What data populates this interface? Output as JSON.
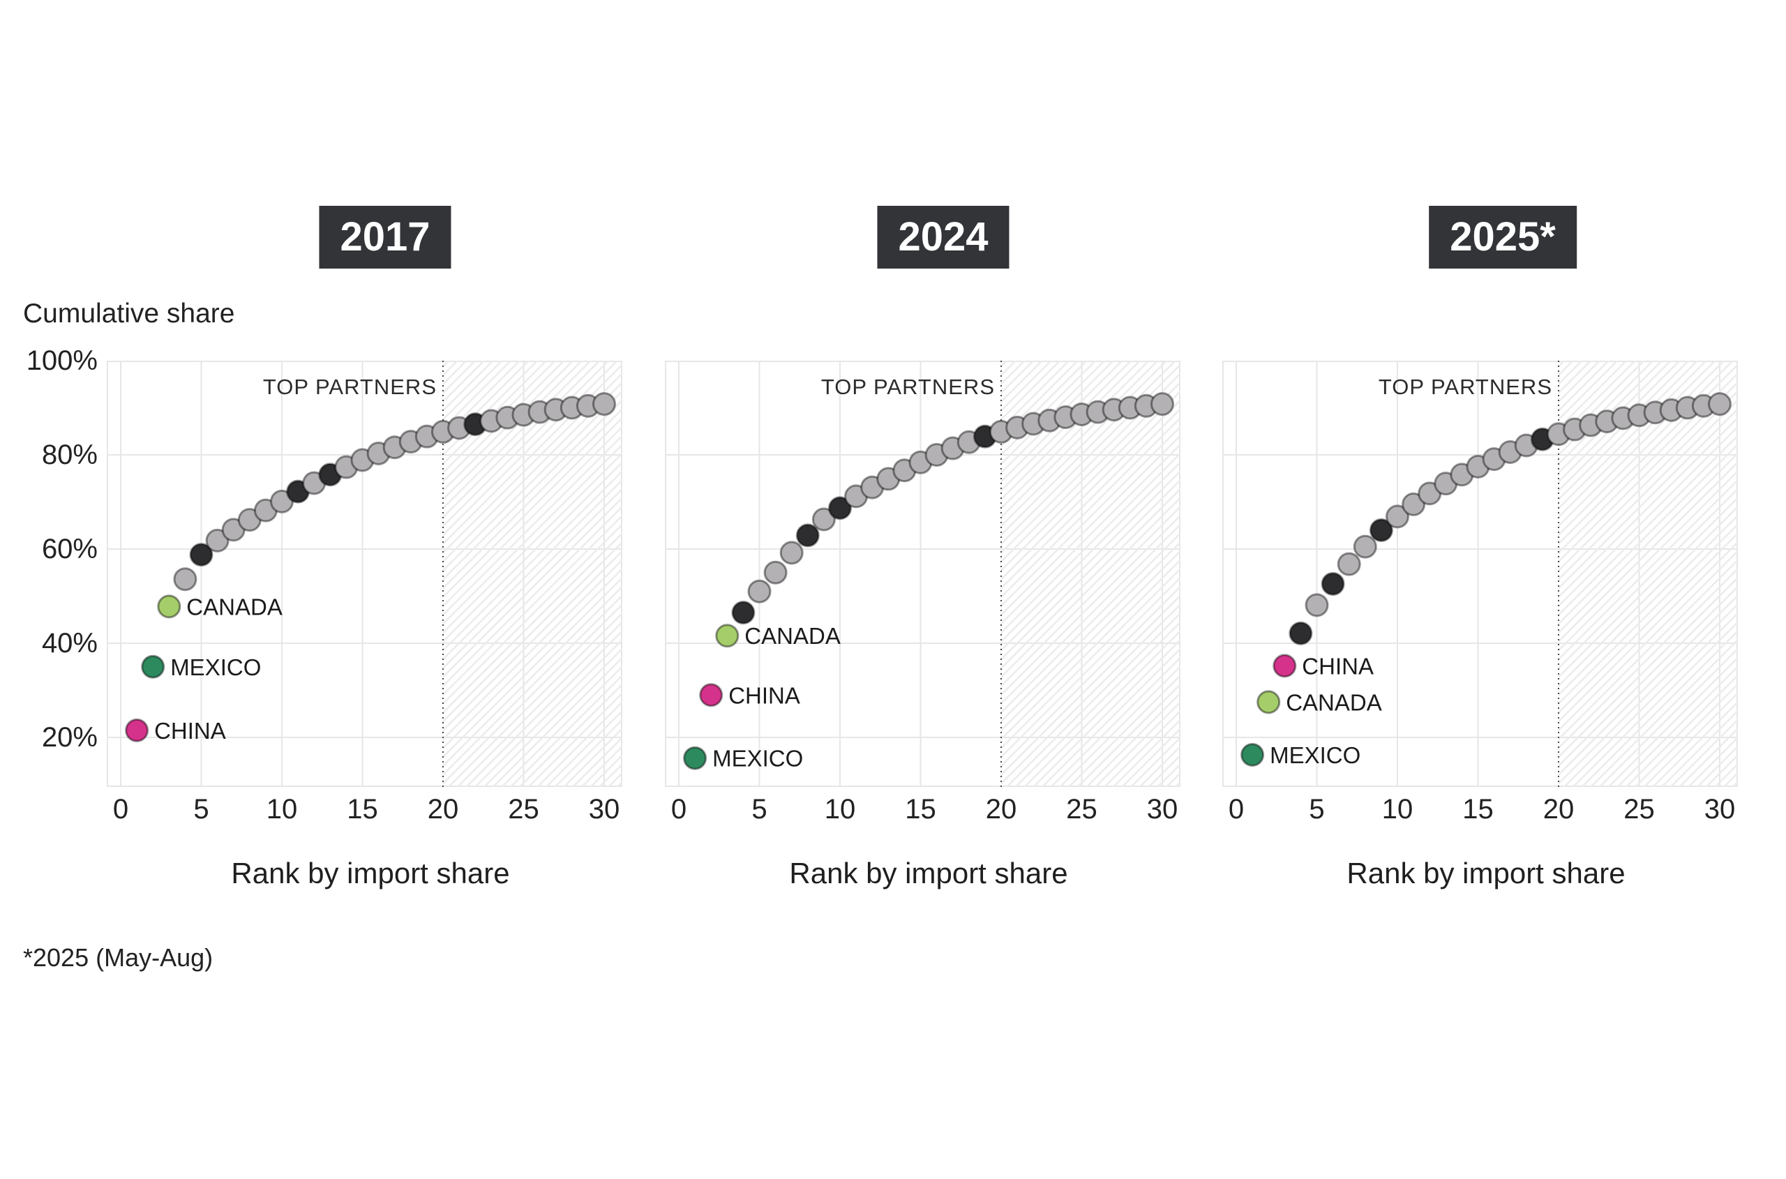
{
  "page": {
    "y_axis_title": "Cumulative share",
    "footnote": "*2025 (May-Aug)"
  },
  "style": {
    "gray_dot": "#b3b1b3",
    "black_dot": "#2d2d2f",
    "dot_stroke": "#000000",
    "grid": "#e6e6e6",
    "hatch": "#ebebeb",
    "cutoff_line": "#454545",
    "title_bg": "#323438",
    "title_text": "#ffffff",
    "china": "#d4328b",
    "canada": "#a5ce6a",
    "mexico": "#2d8a5e",
    "label_text": "#1b1b1b",
    "region_label_text": "#2b2b2b"
  },
  "chart_data": [
    {
      "type": "scatter",
      "title": "2017",
      "xlabel": "Rank by import share",
      "ylabel": "Cumulative share",
      "x_ticks": [
        0,
        5,
        10,
        15,
        20,
        25,
        30
      ],
      "y_tick_labels": [
        "100%",
        "80%",
        "60%",
        "40%",
        "20%"
      ],
      "y_tick_values": [
        100,
        80,
        60,
        40,
        20
      ],
      "xlim": [
        -0.87,
        31.12
      ],
      "ylim": [
        9.5,
        100
      ],
      "grid": true,
      "region_label": "TOP PARTNERS",
      "cutoff_rank": 20,
      "ranks": [
        1,
        2,
        3,
        4,
        5,
        6,
        7,
        8,
        9,
        10,
        11,
        12,
        13,
        14,
        15,
        16,
        17,
        18,
        19,
        20,
        21,
        22,
        23,
        24,
        25,
        26,
        27,
        28,
        29,
        30
      ],
      "cumulative_share_pct": [
        21.5,
        35.0,
        47.8,
        53.6,
        58.8,
        61.8,
        64.1,
        66.2,
        68.2,
        70.1,
        72.2,
        74.0,
        75.8,
        77.4,
        78.9,
        80.3,
        81.6,
        82.8,
        83.9,
        84.9,
        85.7,
        86.5,
        87.2,
        87.9,
        88.5,
        89.1,
        89.6,
        90.0,
        90.4,
        90.8
      ],
      "black_ranks": [
        5,
        11,
        13,
        22
      ],
      "country_points": [
        {
          "country": "CHINA",
          "rank": 1,
          "value": 21.5,
          "color": "#d4328b"
        },
        {
          "country": "MEXICO",
          "rank": 2,
          "value": 35.0,
          "color": "#2d8a5e"
        },
        {
          "country": "CANADA",
          "rank": 3,
          "value": 47.8,
          "color": "#a5ce6a"
        }
      ]
    },
    {
      "type": "scatter",
      "title": "2024",
      "xlabel": "Rank by import share",
      "ylabel": "Cumulative share",
      "x_ticks": [
        0,
        5,
        10,
        15,
        20,
        25,
        30
      ],
      "y_tick_labels": [
        "100%",
        "80%",
        "60%",
        "40%",
        "20%"
      ],
      "y_tick_values": [
        100,
        80,
        60,
        40,
        20
      ],
      "xlim": [
        -0.87,
        31.12
      ],
      "ylim": [
        9.5,
        100
      ],
      "grid": true,
      "region_label": "TOP PARTNERS",
      "cutoff_rank": 20,
      "ranks": [
        1,
        2,
        3,
        4,
        5,
        6,
        7,
        8,
        9,
        10,
        11,
        12,
        13,
        14,
        15,
        16,
        17,
        18,
        19,
        20,
        21,
        22,
        23,
        24,
        25,
        26,
        27,
        28,
        29,
        30
      ],
      "cumulative_share_pct": [
        15.6,
        29.0,
        41.6,
        46.5,
        51.0,
        55.0,
        59.2,
        62.9,
        66.3,
        68.7,
        71.2,
        73.1,
        74.9,
        76.7,
        78.4,
        80.0,
        81.4,
        82.7,
        83.9,
        84.9,
        85.8,
        86.6,
        87.3,
        88.0,
        88.6,
        89.1,
        89.6,
        90.0,
        90.4,
        90.8
      ],
      "black_ranks": [
        4,
        8,
        10,
        19
      ],
      "country_points": [
        {
          "country": "MEXICO",
          "rank": 1,
          "value": 15.6,
          "color": "#2d8a5e"
        },
        {
          "country": "CHINA",
          "rank": 2,
          "value": 29.0,
          "color": "#d4328b"
        },
        {
          "country": "CANADA",
          "rank": 3,
          "value": 41.6,
          "color": "#a5ce6a"
        }
      ]
    },
    {
      "type": "scatter",
      "title": "2025*",
      "xlabel": "Rank by import share",
      "ylabel": "Cumulative share",
      "x_ticks": [
        0,
        5,
        10,
        15,
        20,
        25,
        30
      ],
      "y_tick_labels": [
        "100%",
        "80%",
        "60%",
        "40%",
        "20%"
      ],
      "y_tick_values": [
        100,
        80,
        60,
        40,
        20
      ],
      "xlim": [
        -0.87,
        31.12
      ],
      "ylim": [
        9.5,
        100
      ],
      "grid": true,
      "region_label": "TOP PARTNERS",
      "cutoff_rank": 20,
      "ranks": [
        1,
        2,
        3,
        4,
        5,
        6,
        7,
        8,
        9,
        10,
        11,
        12,
        13,
        14,
        15,
        16,
        17,
        18,
        19,
        20,
        21,
        22,
        23,
        24,
        25,
        26,
        27,
        28,
        29,
        30
      ],
      "cumulative_share_pct": [
        16.3,
        27.5,
        35.2,
        42.1,
        48.1,
        52.6,
        56.8,
        60.5,
        64.0,
        66.9,
        69.5,
        71.8,
        73.9,
        75.8,
        77.5,
        79.1,
        80.6,
        82.0,
        83.3,
        84.4,
        85.4,
        86.3,
        87.1,
        87.8,
        88.4,
        89.0,
        89.5,
        90.0,
        90.4,
        90.8
      ],
      "black_ranks": [
        4,
        6,
        9,
        19
      ],
      "country_points": [
        {
          "country": "MEXICO",
          "rank": 1,
          "value": 16.3,
          "color": "#2d8a5e"
        },
        {
          "country": "CANADA",
          "rank": 2,
          "value": 27.5,
          "color": "#a5ce6a"
        },
        {
          "country": "CHINA",
          "rank": 3,
          "value": 35.2,
          "color": "#d4328b"
        }
      ]
    }
  ]
}
